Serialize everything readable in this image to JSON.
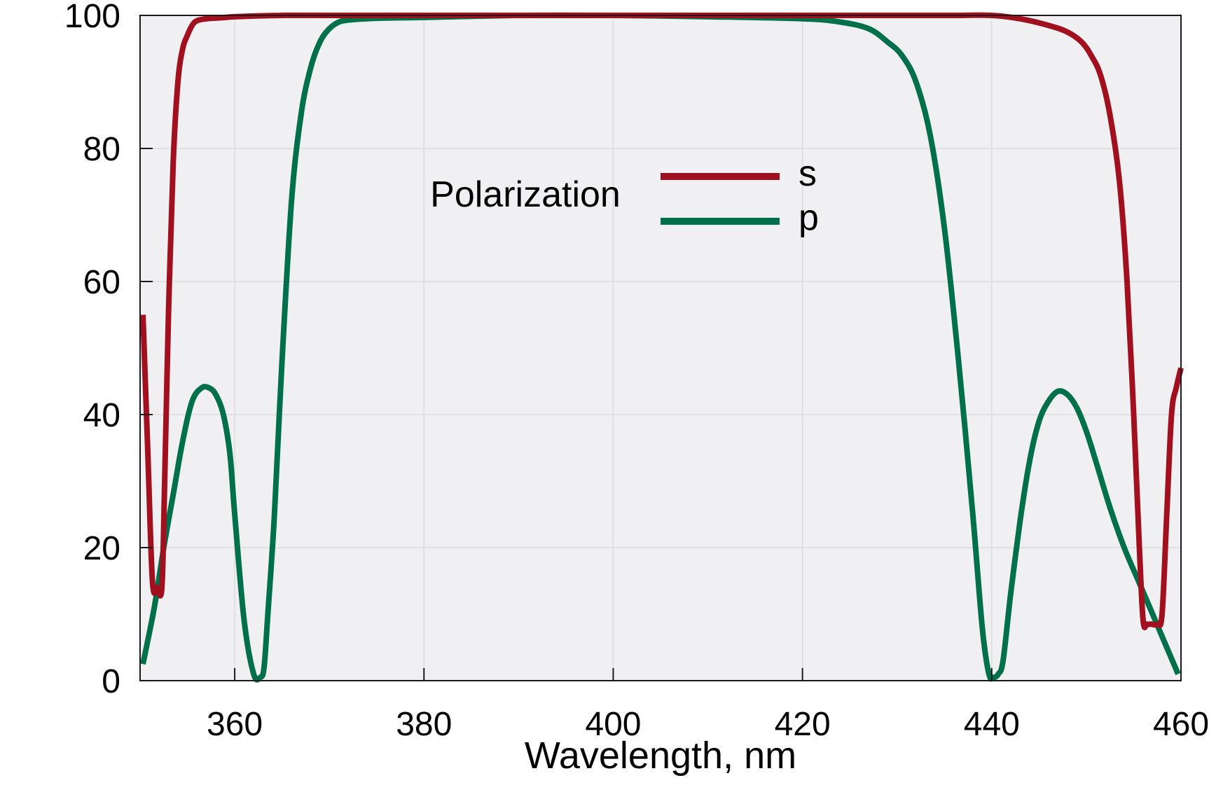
{
  "chart_data": {
    "type": "line",
    "title": "",
    "xlabel": "Wavelength, nm",
    "ylabel": "",
    "xlim": [
      350,
      460
    ],
    "ylim": [
      0,
      100
    ],
    "xticks": [
      360,
      380,
      400,
      420,
      440,
      460
    ],
    "yticks": [
      0,
      20,
      40,
      60,
      80,
      100
    ],
    "grid": true,
    "legend": {
      "title": "Polarization",
      "placement": "top-center",
      "entries": [
        "s",
        "p"
      ]
    },
    "colors": {
      "s": "#a0101e",
      "p": "#00704a",
      "plot_background": "#f0f0f2",
      "grid": "#dcdcdc"
    },
    "series": [
      {
        "name": "s",
        "x": [
          350.3,
          350.8,
          351.3,
          351.8,
          352.3,
          352.6,
          353.0,
          353.5,
          354.0,
          354.5,
          355.0,
          355.5,
          356.0,
          357.0,
          358.0,
          359.0,
          360.0,
          362.0,
          365.0,
          370.0,
          380.0,
          390.0,
          400.0,
          410.0,
          420.0,
          430.0,
          433.0,
          436.0,
          440.0,
          443.0,
          446.0,
          448.0,
          449.5,
          450.5,
          451.5,
          452.5,
          453.5,
          454.3,
          455.0,
          455.6,
          456.0,
          456.4,
          456.8,
          457.5,
          458.0,
          458.5,
          459.0,
          459.5,
          460.0
        ],
        "y": [
          55,
          35,
          15,
          14,
          14,
          30,
          55,
          78,
          90,
          95,
          97,
          98.5,
          99.2,
          99.5,
          99.6,
          99.7,
          99.8,
          99.9,
          100,
          100,
          100,
          100,
          100,
          100,
          100,
          100,
          100,
          100,
          100,
          99.5,
          98.5,
          97.5,
          96,
          94,
          91,
          85,
          75,
          60,
          40,
          20,
          9,
          8.5,
          8.5,
          8.5,
          10,
          25,
          40,
          44,
          47
        ]
      },
      {
        "name": "p",
        "x": [
          350.3,
          351.5,
          352.5,
          353.5,
          354.5,
          355.5,
          356.5,
          357.3,
          358.0,
          358.8,
          359.5,
          360.0,
          361.0,
          362.0,
          362.7,
          363.1,
          363.5,
          364.2,
          365.0,
          366.0,
          367.0,
          368.0,
          369.0,
          370.0,
          371.0,
          372.0,
          374.0,
          376.0,
          380.0,
          390.0,
          400.0,
          410.0,
          420.0,
          424.0,
          427.0,
          429.0,
          430.5,
          432.0,
          433.5,
          435.0,
          436.5,
          438.0,
          439.0,
          439.7,
          440.2,
          440.7,
          441.2,
          442.0,
          443.0,
          444.0,
          445.0,
          446.0,
          447.0,
          448.0,
          449.0,
          450.0,
          451.0,
          452.5,
          454.0,
          455.5,
          457.0,
          458.5,
          459.7
        ],
        "y": [
          2.5,
          11,
          20,
          28,
          36,
          42,
          44,
          44,
          43,
          40,
          34,
          25,
          9,
          1,
          0.5,
          2,
          10,
          25,
          48,
          72,
          85,
          92,
          96,
          98,
          99,
          99.3,
          99.5,
          99.6,
          99.7,
          100,
          100,
          99.8,
          99.5,
          99.0,
          98,
          96,
          94,
          90,
          82,
          68,
          48,
          25,
          8,
          1,
          0.5,
          1,
          3,
          13,
          24,
          33,
          39,
          42,
          43.5,
          43,
          41,
          37.5,
          33,
          26,
          20,
          15,
          10,
          5,
          1
        ]
      }
    ]
  }
}
